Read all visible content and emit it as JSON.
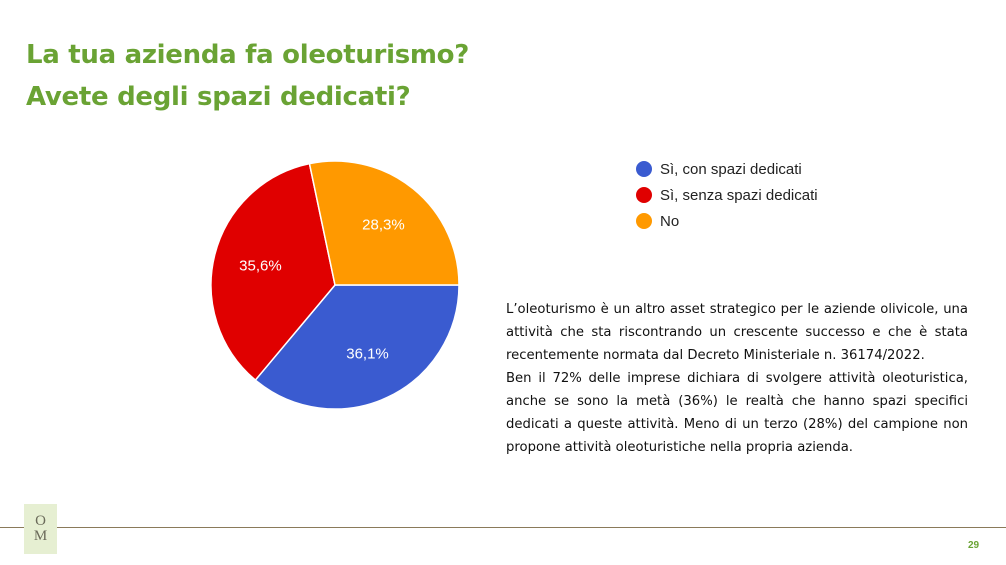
{
  "title": {
    "line1": "La tua azienda fa oleoturismo?",
    "line2": "Avete degli spazi dedicati?"
  },
  "chart_data": {
    "type": "pie",
    "categories": [
      "Sì, con spazi dedicati",
      "Sì, senza spazi dedicati",
      "No"
    ],
    "values": [
      36.1,
      35.6,
      28.3
    ],
    "labels": [
      "36,1%",
      "35,6%",
      "28,3%"
    ],
    "colors": [
      "#3a5bd0",
      "#e00000",
      "#ff9900"
    ],
    "legend_position": "top-right"
  },
  "body_text": {
    "paragraph1": "L’oleoturismo è un altro asset strategico per le aziende olivicole, una attività che sta riscontrando un crescente successo e che è stata recentemente normata dal Decreto Ministeriale n. 36174/2022.",
    "paragraph2": "Ben il 72% delle imprese dichiara di svolgere attività oleoturistica, anche se sono la metà (36%) le realtà che hanno spazi specifici dedicati a queste attività. Meno di un terzo (28%) del campione non propone attività oleoturistiche nella propria azienda."
  },
  "footer": {
    "logo_top": "O",
    "logo_bottom": "M",
    "page_number": "29"
  }
}
